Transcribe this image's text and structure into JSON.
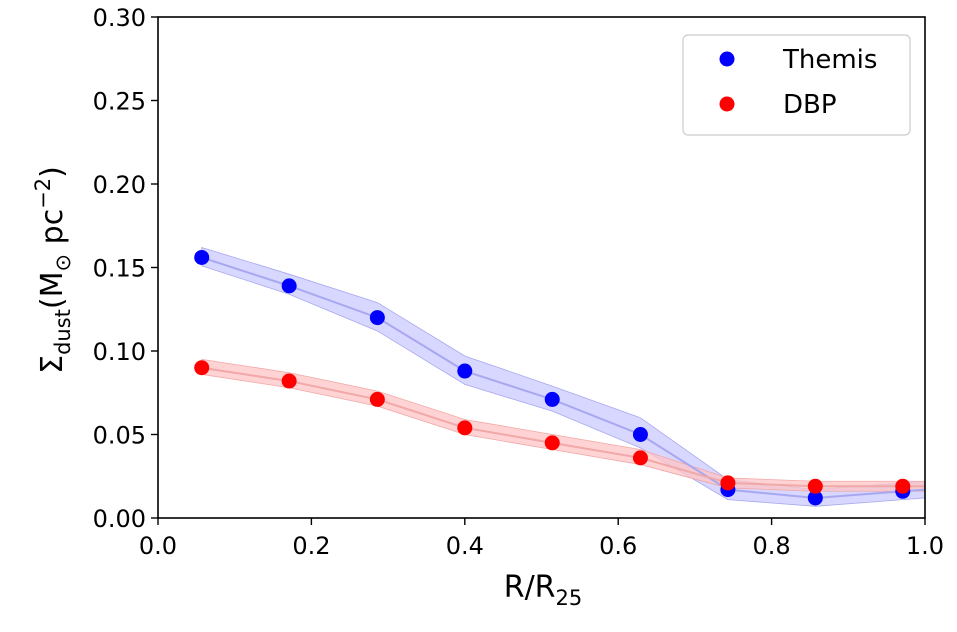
{
  "chart_data": {
    "type": "line",
    "title": "",
    "xlabel": {
      "main": "R/R",
      "sub": "25"
    },
    "ylabel": {
      "sigma": "Σ",
      "sub": "dust",
      "unit_open": "(M",
      "odot": "⊙",
      "unit_mid": " pc",
      "sup": "−2",
      "unit_close": ")"
    },
    "xlim": [
      0.0,
      1.0
    ],
    "ylim": [
      0.0,
      0.3
    ],
    "x_ticks": [
      0.0,
      0.2,
      0.4,
      0.6,
      0.8,
      1.0
    ],
    "x_tick_labels": [
      "0.0",
      "0.2",
      "0.4",
      "0.6",
      "0.8",
      "1.0"
    ],
    "y_ticks": [
      0.0,
      0.05,
      0.1,
      0.15,
      0.2,
      0.25,
      0.3
    ],
    "y_tick_labels": [
      "0.00",
      "0.05",
      "0.10",
      "0.15",
      "0.20",
      "0.25",
      "0.30"
    ],
    "legend_position": "top-right",
    "series": [
      {
        "name": "Themis",
        "color": "#0000ff",
        "band_color": "#c9c9ff",
        "line_color": "#a8a8f0",
        "x": [
          0.057,
          0.171,
          0.286,
          0.4,
          0.514,
          0.629,
          0.743,
          0.857,
          0.971,
          1.0
        ],
        "y": [
          0.156,
          0.139,
          0.12,
          0.088,
          0.071,
          0.05,
          0.017,
          0.012,
          0.016,
          0.017
        ],
        "lower": [
          0.151,
          0.134,
          0.112,
          0.08,
          0.064,
          0.042,
          0.011,
          0.007,
          0.011,
          0.012
        ],
        "upper": [
          0.162,
          0.146,
          0.129,
          0.097,
          0.079,
          0.06,
          0.023,
          0.017,
          0.021,
          0.022
        ],
        "markers_count": 9
      },
      {
        "name": "DBP",
        "color": "#ff0000",
        "band_color": "#ffc4c4",
        "line_color": "#f0a8a8",
        "x": [
          0.057,
          0.171,
          0.286,
          0.4,
          0.514,
          0.629,
          0.743,
          0.857,
          0.971,
          1.0
        ],
        "y": [
          0.09,
          0.082,
          0.071,
          0.054,
          0.045,
          0.036,
          0.021,
          0.019,
          0.019,
          0.019
        ],
        "lower": [
          0.086,
          0.078,
          0.067,
          0.05,
          0.041,
          0.032,
          0.018,
          0.016,
          0.016,
          0.016
        ],
        "upper": [
          0.095,
          0.087,
          0.076,
          0.059,
          0.05,
          0.041,
          0.024,
          0.022,
          0.022,
          0.022
        ],
        "markers_count": 9
      }
    ]
  }
}
